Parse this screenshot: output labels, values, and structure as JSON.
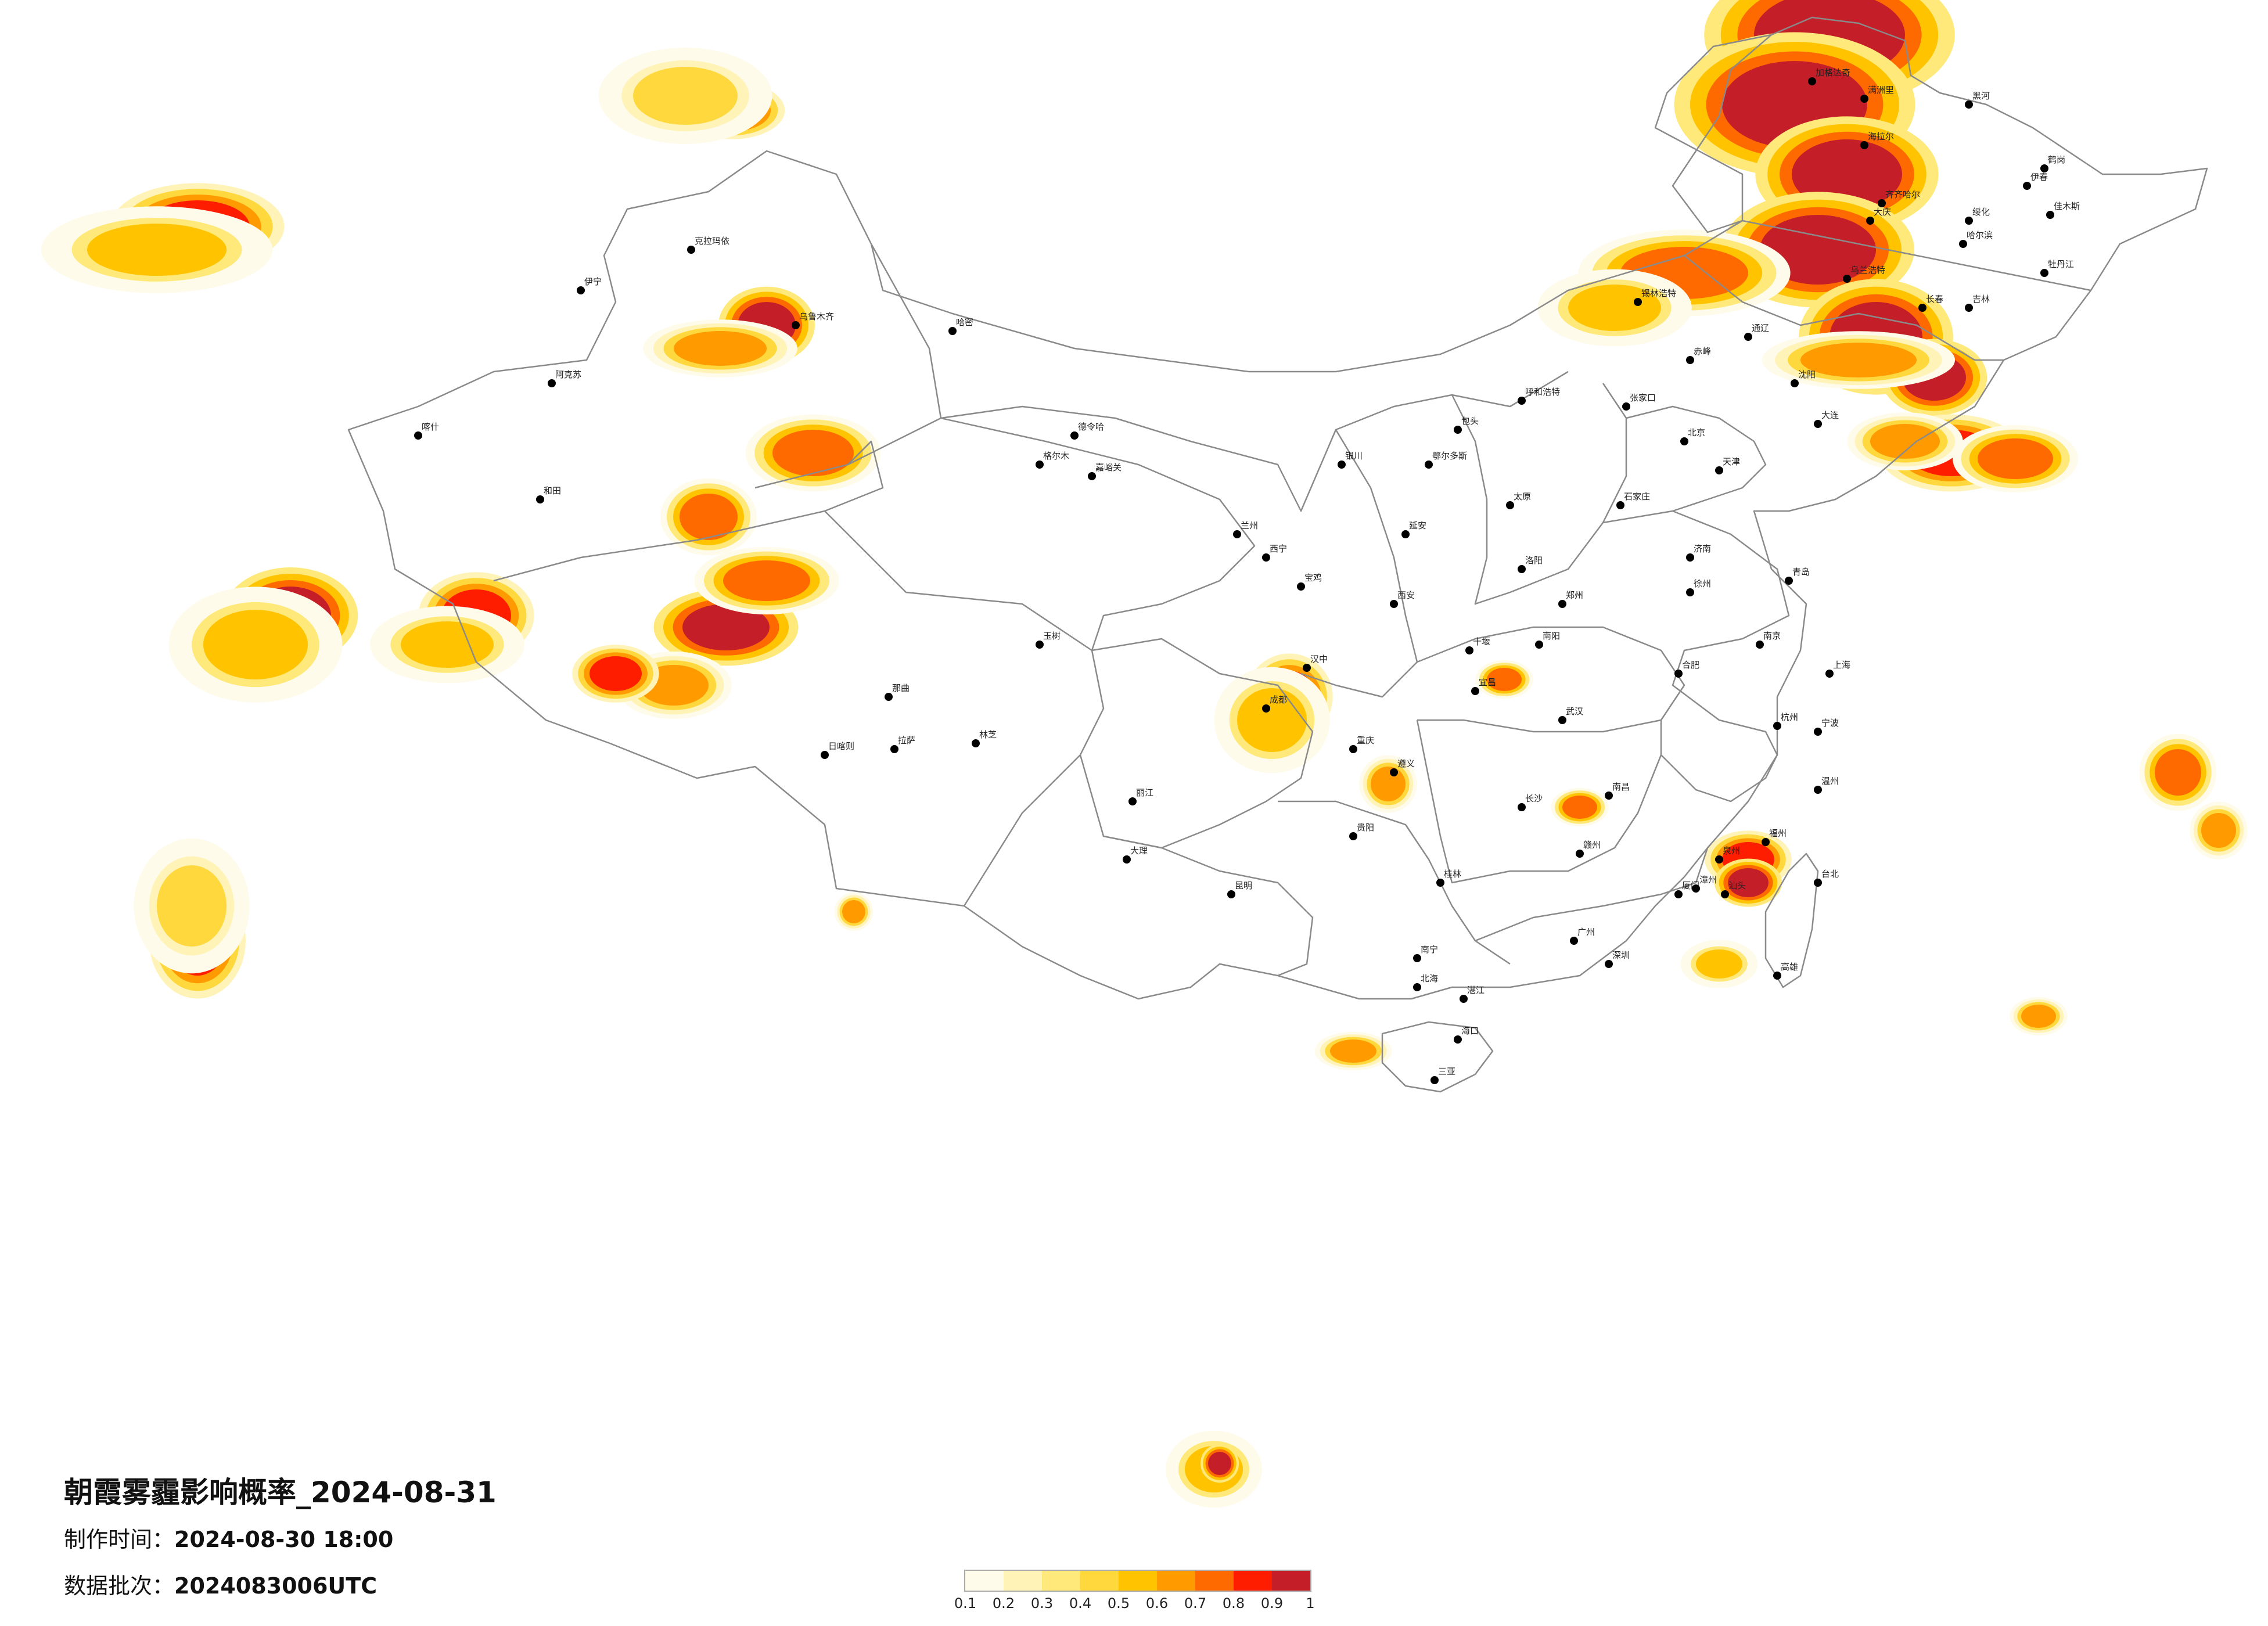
{
  "title": "朝霞雾霾影响概率_2024-08-31",
  "meta": {
    "made_label": "制作时间：",
    "made_value": "2024-08-30 18:00",
    "batch_label": "数据批次：",
    "batch_value": "2024083006UTC"
  },
  "legend": {
    "colors": [
      "#fffbea",
      "#fff3b8",
      "#ffe97a",
      "#ffd83d",
      "#ffc300",
      "#ff9b00",
      "#ff6a00",
      "#ff1d00",
      "#c41f28"
    ],
    "ticks": [
      "0.1",
      "0.2",
      "0.3",
      "0.4",
      "0.5",
      "0.6",
      "0.7",
      "0.8",
      "0.9",
      "1"
    ]
  },
  "colors": {
    "boundary": "#8a8a8a",
    "city_dot": "#000000"
  },
  "cities": [
    {
      "name": "伊宁"
    },
    {
      "name": "克拉玛依"
    },
    {
      "name": "乌鲁木齐"
    },
    {
      "name": "阿克苏"
    },
    {
      "name": "喀什"
    },
    {
      "name": "和田"
    },
    {
      "name": "哈密"
    },
    {
      "name": "德令哈"
    },
    {
      "name": "西宁"
    },
    {
      "name": "兰州"
    },
    {
      "name": "银川"
    },
    {
      "name": "呼和浩特"
    },
    {
      "name": "包头"
    },
    {
      "name": "鄂尔多斯"
    },
    {
      "name": "太原"
    },
    {
      "name": "石家庄"
    },
    {
      "name": "北京"
    },
    {
      "name": "天津"
    },
    {
      "name": "济南"
    },
    {
      "name": "郑州"
    },
    {
      "name": "西安"
    },
    {
      "name": "成都"
    },
    {
      "name": "重庆"
    },
    {
      "name": "武汉"
    },
    {
      "name": "长沙"
    },
    {
      "name": "南昌"
    },
    {
      "name": "合肥"
    },
    {
      "name": "南京"
    },
    {
      "name": "上海"
    },
    {
      "name": "杭州"
    },
    {
      "name": "福州"
    },
    {
      "name": "广州"
    },
    {
      "name": "深圳"
    },
    {
      "name": "南宁"
    },
    {
      "name": "贵阳"
    },
    {
      "name": "昆明"
    },
    {
      "name": "拉萨"
    },
    {
      "name": "日喀则"
    },
    {
      "name": "海口"
    },
    {
      "name": "三亚"
    },
    {
      "name": "台北"
    },
    {
      "name": "高雄"
    },
    {
      "name": "沈阳"
    },
    {
      "name": "大连"
    },
    {
      "name": "长春"
    },
    {
      "name": "吉林"
    },
    {
      "name": "哈尔滨"
    },
    {
      "name": "齐齐哈尔"
    },
    {
      "name": "海拉尔"
    },
    {
      "name": "佳木斯"
    },
    {
      "name": "牡丹江"
    },
    {
      "name": "锡林浩特"
    },
    {
      "name": "赤峰"
    },
    {
      "name": "通辽"
    },
    {
      "name": "青岛"
    },
    {
      "name": "厦门"
    },
    {
      "name": "汕头"
    },
    {
      "name": "桂林"
    },
    {
      "name": "遵义"
    },
    {
      "name": "宜昌"
    },
    {
      "name": "赣州"
    },
    {
      "name": "温州"
    },
    {
      "name": "延安"
    },
    {
      "name": "张家口"
    },
    {
      "name": "嘉峪关"
    },
    {
      "name": "格尔木"
    },
    {
      "name": "玉树"
    },
    {
      "name": "林芝"
    },
    {
      "name": "那曲"
    },
    {
      "name": "大理"
    },
    {
      "name": "丽江"
    },
    {
      "name": "宝鸡"
    },
    {
      "name": "汉中"
    },
    {
      "name": "十堰"
    },
    {
      "name": "南阳"
    },
    {
      "name": "洛阳"
    },
    {
      "name": "徐州"
    },
    {
      "name": "宁波"
    },
    {
      "name": "泉州"
    },
    {
      "name": "漳州"
    },
    {
      "name": "湛江"
    },
    {
      "name": "北海"
    },
    {
      "name": "大庆"
    },
    {
      "name": "绥化"
    },
    {
      "name": "伊春"
    },
    {
      "name": "鹤岗"
    },
    {
      "name": "黑河"
    },
    {
      "name": "满洲里"
    },
    {
      "name": "加格达奇"
    },
    {
      "name": "乌兰浩特"
    }
  ]
}
